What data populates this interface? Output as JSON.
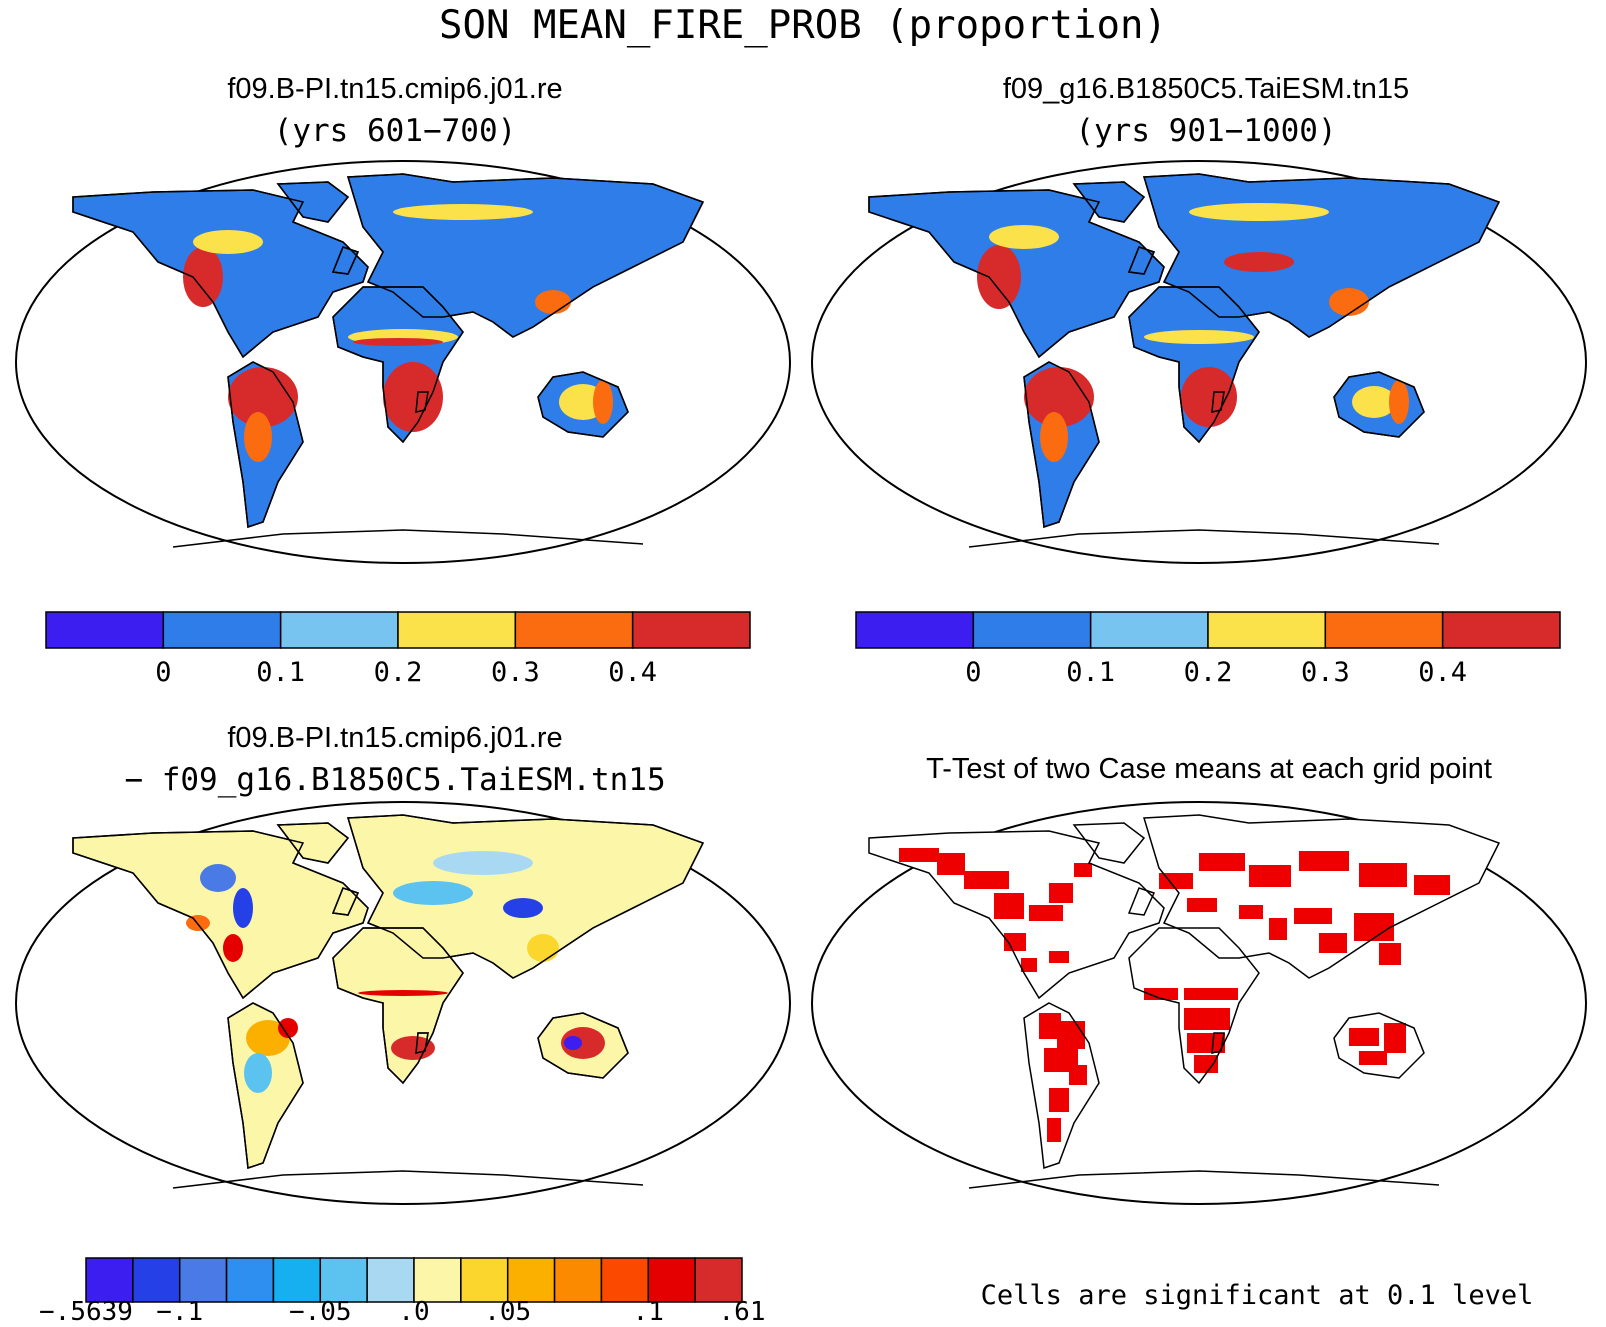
{
  "main_title": "SON MEAN_FIRE_PROB (proportion)",
  "panels": {
    "top_left": {
      "title": "f09.B-PI.tn15.cmip6.j01.re",
      "subtitle": "(yrs 601−700)"
    },
    "top_right": {
      "title": "f09_g16.B1850C5.TaiESM.tn15",
      "subtitle": "(yrs 901−1000)"
    },
    "bottom_left": {
      "title": "f09.B-PI.tn15.cmip6.j01.re",
      "subtitle": "− f09_g16.B1850C5.TaiESM.tn15"
    },
    "bottom_right": {
      "title": "T-Test of two Case means at each grid point",
      "note": "Cells are significant at 0.1 level"
    }
  },
  "colorbars": {
    "mean": {
      "colors": [
        "#3c1ef0",
        "#2e7de8",
        "#76c4ef",
        "#fbe14a",
        "#fb6b0f",
        "#d72b2b"
      ],
      "tick_labels": [
        "0",
        "0.1",
        "0.2",
        "0.3",
        "0.4"
      ]
    },
    "diff": {
      "colors": [
        "#3c1ef0",
        "#2440e6",
        "#4a7ae6",
        "#2e8ff0",
        "#16b0f0",
        "#5cc2f0",
        "#a9d9f2",
        "#fcf7a8",
        "#fbd72d",
        "#fbb000",
        "#fb8a00",
        "#fb4a00",
        "#e50000",
        "#d72b2b"
      ],
      "tick_labels": [
        "−.5639",
        "−.1",
        "−.05",
        ".0",
        ".05",
        ".1",
        ".61"
      ]
    }
  },
  "palette": {
    "ocean": "#ffffff",
    "coast": "#000000",
    "significant": "#ee0000"
  }
}
